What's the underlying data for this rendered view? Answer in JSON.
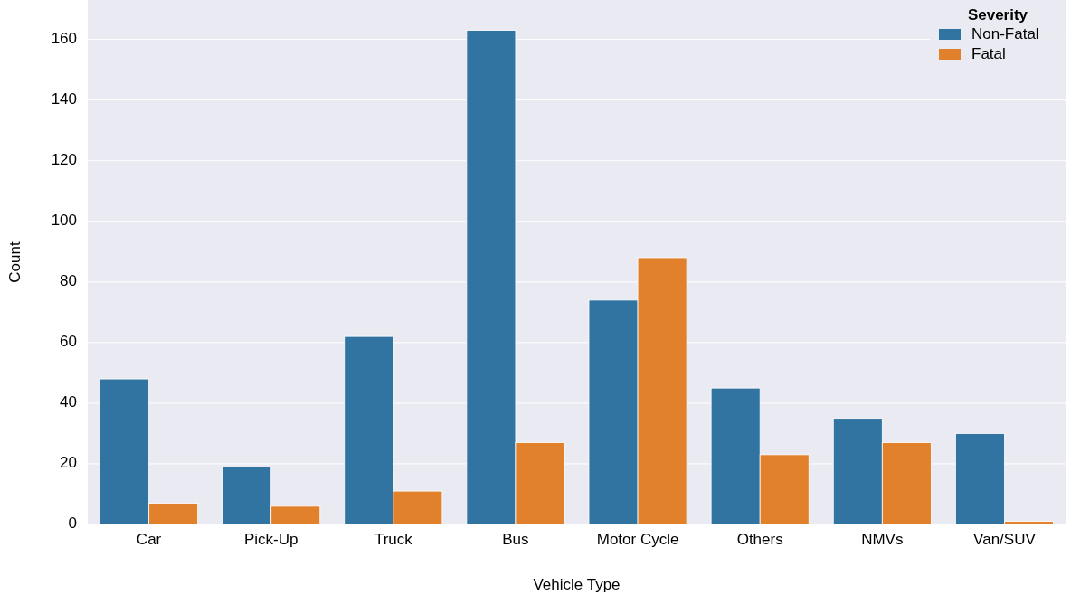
{
  "chart_data": {
    "type": "bar",
    "xlabel": "Vehicle Type",
    "ylabel": "Count",
    "legend_title": "Severity",
    "categories": [
      "Car",
      "Pick-Up",
      "Truck",
      "Bus",
      "Motor Cycle",
      "Others",
      "NMVs",
      "Van/SUV"
    ],
    "series": [
      {
        "name": "Non-Fatal",
        "color": "#3274a1",
        "values": [
          48,
          19,
          62,
          163,
          74,
          45,
          35,
          30
        ]
      },
      {
        "name": "Fatal",
        "color": "#e1812c",
        "values": [
          7,
          6,
          11,
          27,
          88,
          23,
          27,
          1
        ]
      }
    ],
    "ylim": [
      0,
      173
    ],
    "yticks": [
      0,
      20,
      40,
      60,
      80,
      100,
      120,
      140,
      160
    ],
    "grid": "y",
    "legend": "top right"
  }
}
